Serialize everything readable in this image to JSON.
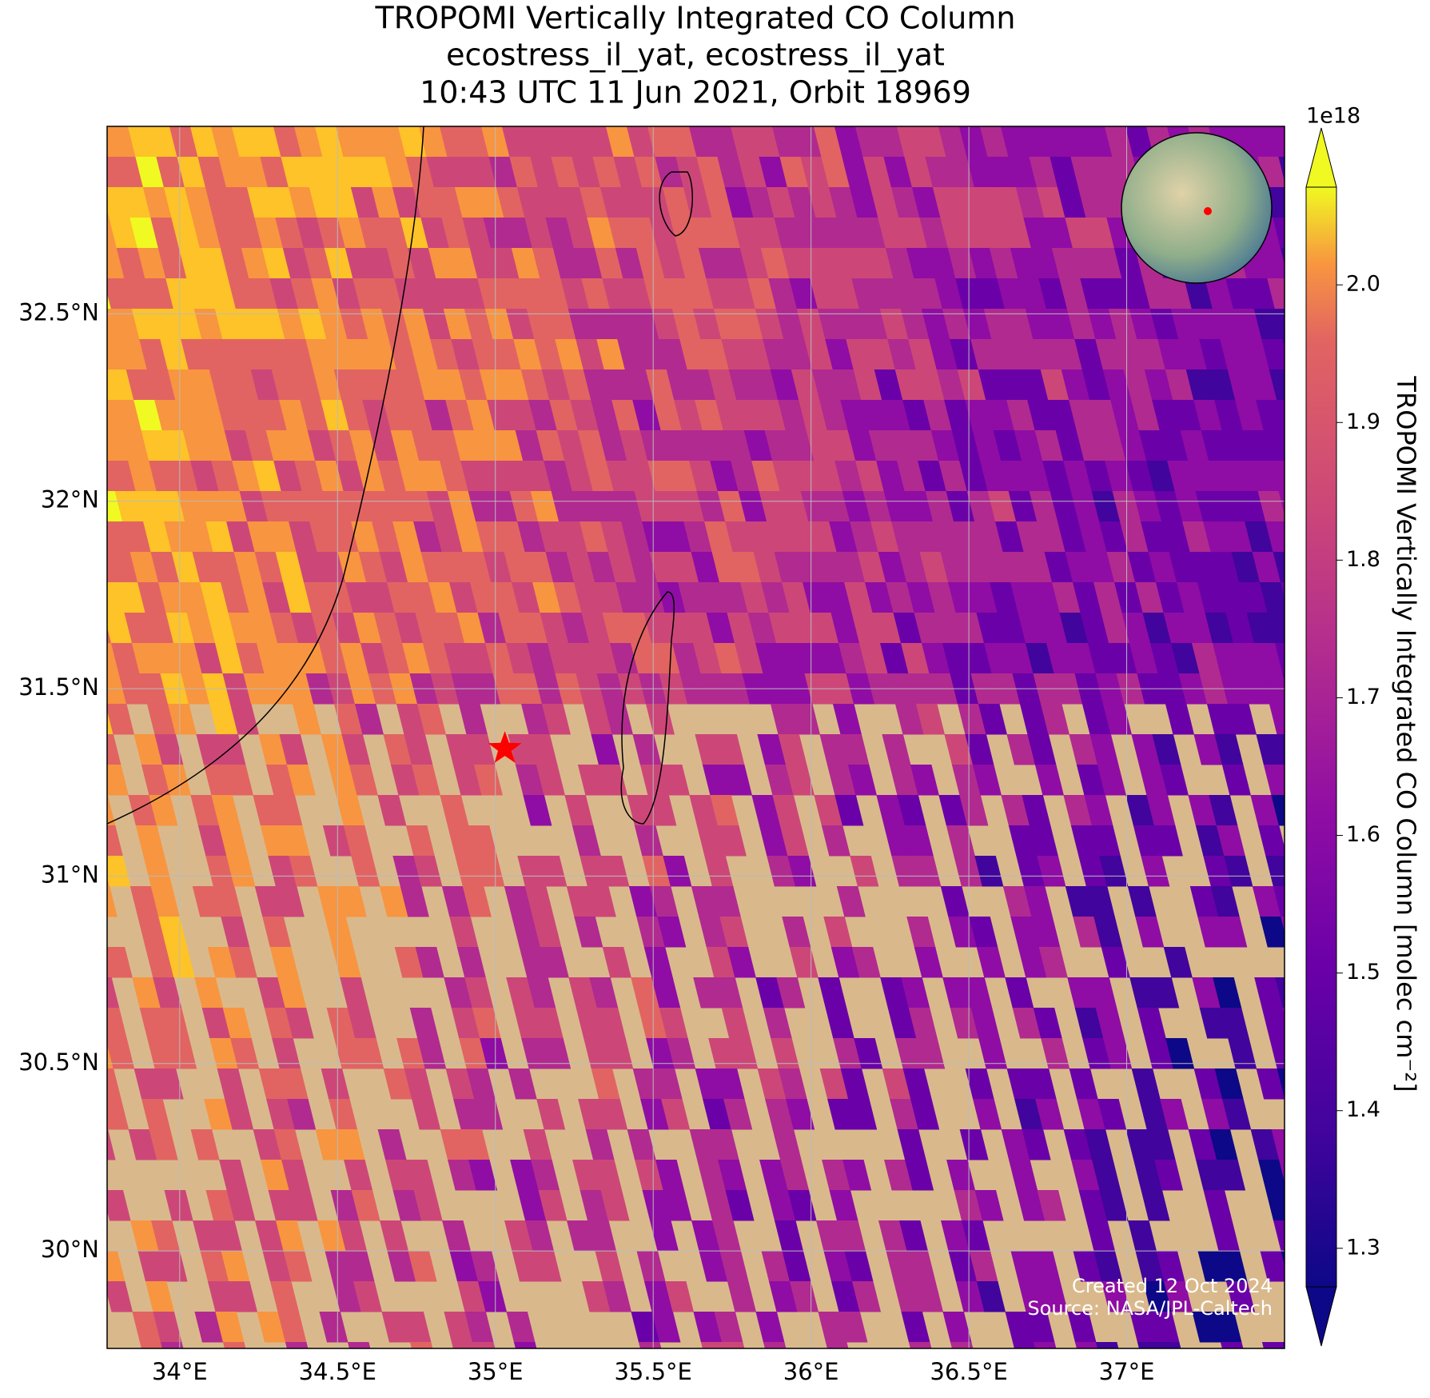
{
  "chart_data": {
    "type": "map",
    "title": [
      "TROPOMI Vertically Integrated CO Column",
      "ecostress_il_yat, ecostress_il_yat",
      "10:43 UTC 11 Jun 2021, Orbit 18969"
    ],
    "xlim": [
      33.77,
      37.5
    ],
    "ylim": [
      29.74,
      33.0
    ],
    "xticks": [
      {
        "value": 34,
        "label": "34°E"
      },
      {
        "value": 34.5,
        "label": "34.5°E"
      },
      {
        "value": 35,
        "label": "35°E"
      },
      {
        "value": 35.5,
        "label": "35.5°E"
      },
      {
        "value": 36,
        "label": "36°E"
      },
      {
        "value": 36.5,
        "label": "36.5°E"
      },
      {
        "value": 37,
        "label": "37°E"
      }
    ],
    "yticks": [
      {
        "value": 30,
        "label": "30°N"
      },
      {
        "value": 30.5,
        "label": "30.5°N"
      },
      {
        "value": 31,
        "label": "31°N"
      },
      {
        "value": 31.5,
        "label": "31.5°N"
      },
      {
        "value": 32,
        "label": "32°N"
      },
      {
        "value": 32.5,
        "label": "32.5°N"
      }
    ],
    "grid": true,
    "marker": {
      "lon": 35.03,
      "lat": 31.34,
      "color": "red"
    },
    "colorbar": {
      "label": "TROPOMI Vertically Integrated CO Column [molec cm⁻²]",
      "offset_label": "1e18",
      "cmap": "plasma",
      "lim": [
        1.272,
        2.071
      ],
      "ticks": [
        1.3,
        1.4,
        1.5,
        1.6,
        1.7,
        1.8,
        1.9,
        {
          "value": 2,
          "label": "2.0"
        }
      ]
    },
    "annotations": [
      "Created 12 Oct 2024",
      "Source: NASA/JPL-Caltech"
    ]
  }
}
